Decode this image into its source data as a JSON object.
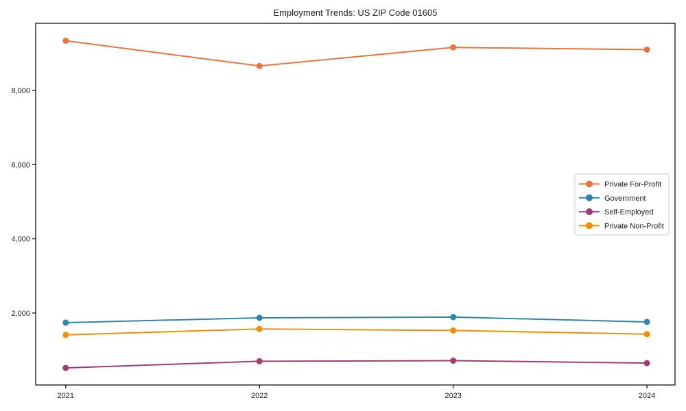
{
  "chart_data": {
    "type": "line",
    "title": "Employment Trends: US ZIP Code 01605",
    "xlabel": "",
    "ylabel": "",
    "x": [
      2021,
      2022,
      2023,
      2024
    ],
    "x_tick_labels": [
      "2021",
      "2022",
      "2023",
      "2024"
    ],
    "y_ticks": [
      2000,
      4000,
      6000,
      8000
    ],
    "y_tick_labels": [
      "2,000",
      "4,000",
      "6,000",
      "8,000"
    ],
    "xlim": [
      2020.845,
      2024.145
    ],
    "ylim": [
      60,
      9810
    ],
    "grid": false,
    "frame": true,
    "legend_position": "right-middle",
    "series": [
      {
        "name": "Private For-Profit",
        "color": "#E8743B",
        "values": [
          9340,
          8660,
          9160,
          9100
        ]
      },
      {
        "name": "Government",
        "color": "#2E86AB",
        "values": [
          1740,
          1870,
          1890,
          1760
        ]
      },
      {
        "name": "Self-Employed",
        "color": "#A23B72",
        "values": [
          520,
          700,
          715,
          650
        ]
      },
      {
        "name": "Private Non-Profit",
        "color": "#F18F01",
        "values": [
          1410,
          1570,
          1530,
          1430
        ]
      }
    ],
    "colors": {
      "axis": "#000000",
      "text": "#1a1a1a",
      "legend_border": "#cccccc",
      "background": "#ffffff"
    }
  }
}
